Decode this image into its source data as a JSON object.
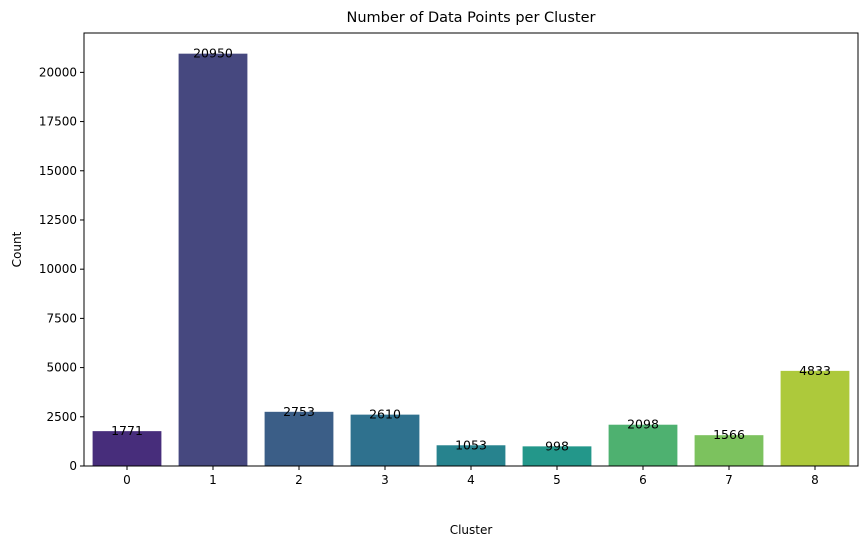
{
  "chart_data": {
    "type": "bar",
    "title": "Number of Data Points per Cluster",
    "xlabel": "Cluster",
    "ylabel": "Count",
    "categories": [
      "0",
      "1",
      "2",
      "3",
      "4",
      "5",
      "6",
      "7",
      "8"
    ],
    "values": [
      1771,
      20950,
      2753,
      2610,
      1053,
      998,
      2098,
      1566,
      4833
    ],
    "data_labels": [
      "1771",
      "20950",
      "2753",
      "2610",
      "1053",
      "998",
      "2098",
      "1566",
      "4833"
    ],
    "colors": [
      "#472d7b",
      "#46487f",
      "#3b5e87",
      "#2f718e",
      "#27838e",
      "#23978a",
      "#4eb170",
      "#7cc25e",
      "#adc93b"
    ],
    "ylim": [
      0,
      22000
    ],
    "yticks": [
      0,
      2500,
      5000,
      7500,
      10000,
      12500,
      15000,
      17500,
      20000
    ],
    "ytick_labels": [
      "0",
      "2500",
      "5000",
      "7500",
      "10000",
      "12500",
      "15000",
      "17500",
      "20000"
    ],
    "grid": false,
    "legend": "none"
  }
}
